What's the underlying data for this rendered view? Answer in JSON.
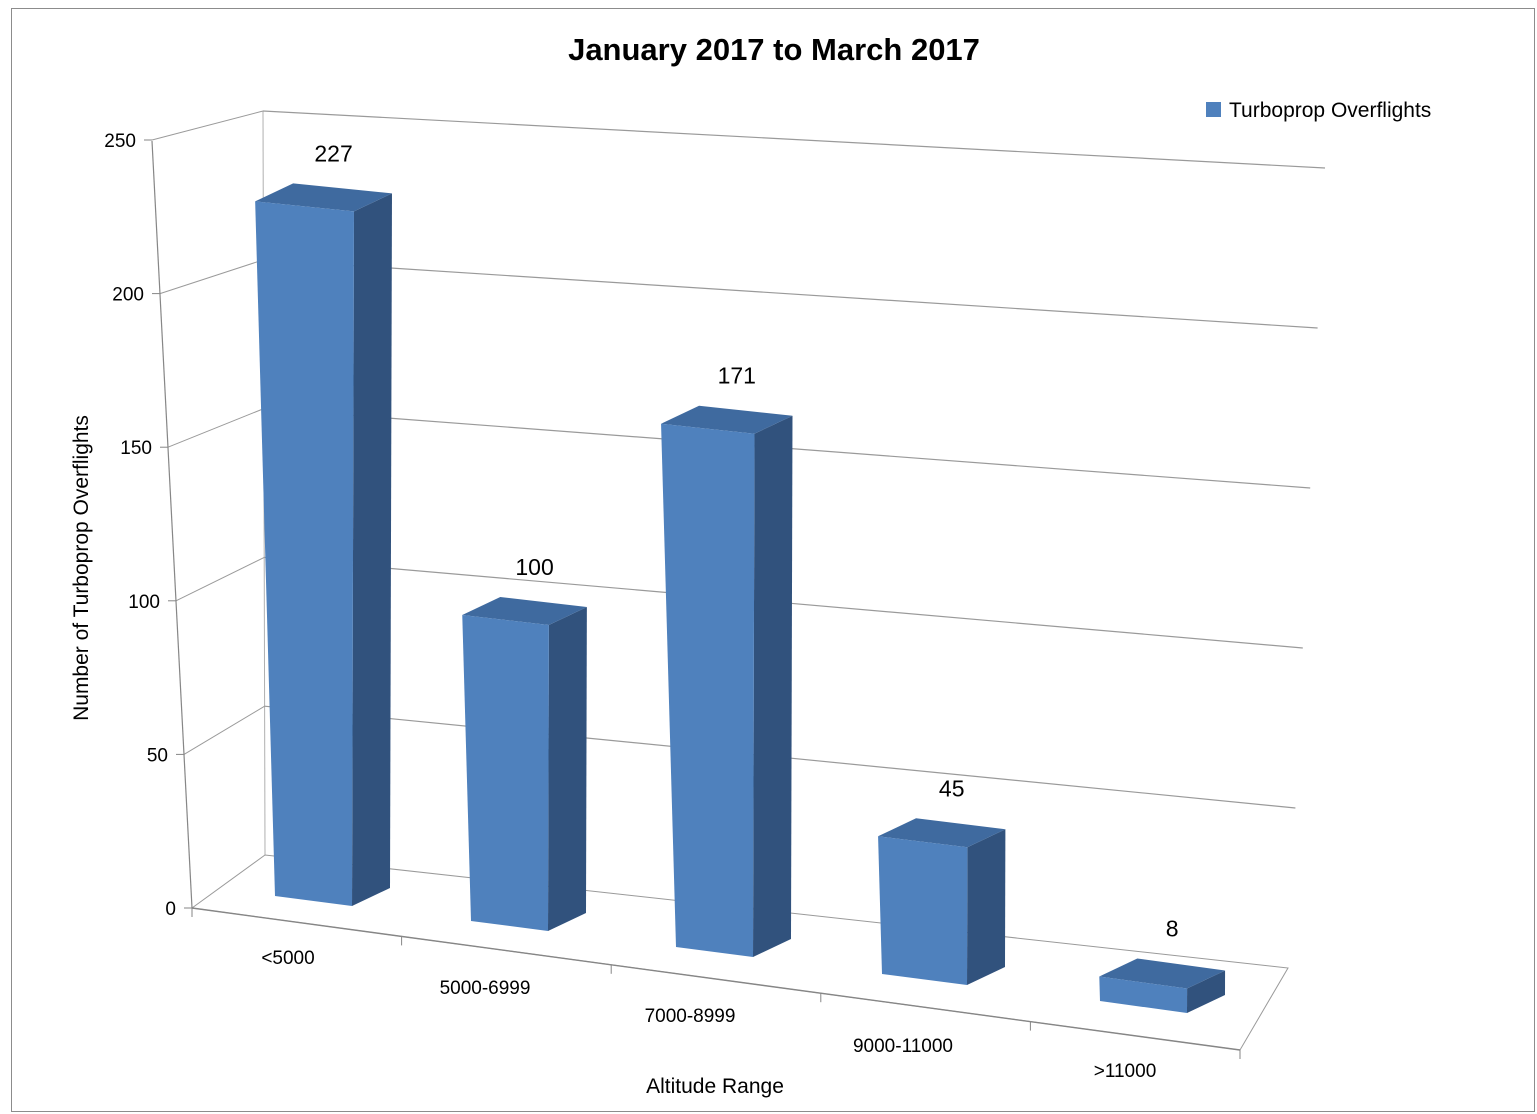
{
  "chart_data": {
    "type": "bar",
    "title": "January 2017 to March 2017",
    "xlabel": "Altitude Range",
    "ylabel": "Number of Turboprop Overflights",
    "categories": [
      "<5000",
      "5000-6999",
      "7000-8999",
      "9000-11000",
      ">11000"
    ],
    "series": [
      {
        "name": "Turboprop Overflights",
        "values": [
          227,
          100,
          171,
          45,
          8
        ],
        "color": "#4f81bd"
      }
    ],
    "ylim": [
      0,
      250
    ],
    "yticks": [
      "0",
      "50",
      "100",
      "150",
      "200",
      "250"
    ],
    "grid": true,
    "legend": "top-right",
    "style": "3d-column"
  }
}
